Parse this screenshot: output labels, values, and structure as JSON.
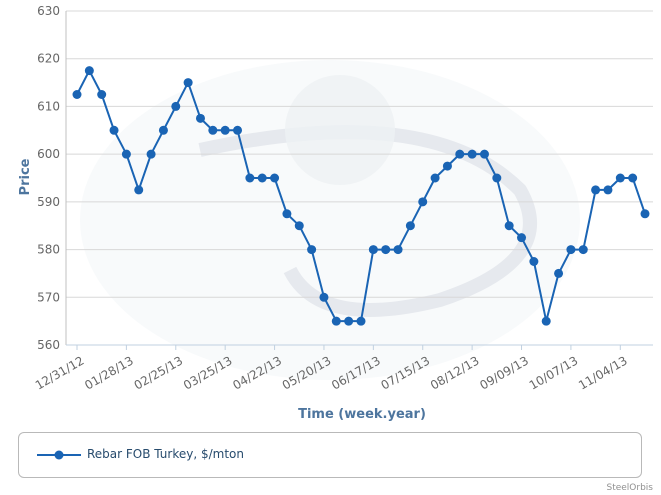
{
  "chart_data": {
    "type": "line",
    "title": "",
    "xlabel": "Time (week.year)",
    "ylabel": "Price",
    "ylim": [
      560,
      630
    ],
    "yticks": [
      560,
      570,
      580,
      590,
      600,
      610,
      620,
      630
    ],
    "grid": true,
    "legend_position": "bottom",
    "credit": "SteelOrbis",
    "xtick_labels": [
      "12/31/12",
      "01/28/13",
      "02/25/13",
      "03/25/13",
      "04/22/13",
      "05/20/13",
      "06/17/13",
      "07/15/13",
      "08/12/13",
      "09/09/13",
      "10/07/13",
      "11/04/13"
    ],
    "series": [
      {
        "name": "Rebar FOB Turkey, $/mton",
        "color": "#1a64b4",
        "values": [
          612.5,
          617.5,
          612.5,
          605,
          600,
          592.5,
          600,
          605,
          610,
          615,
          607.5,
          605,
          605,
          605,
          595,
          595,
          595,
          587.5,
          585,
          580,
          570,
          565,
          565,
          565,
          580,
          580,
          580,
          585,
          590,
          595,
          597.5,
          600,
          600,
          600,
          595,
          585,
          582.5,
          577.5,
          565,
          575,
          580,
          580,
          592.5,
          592.5,
          595,
          595,
          587.5
        ]
      }
    ]
  }
}
